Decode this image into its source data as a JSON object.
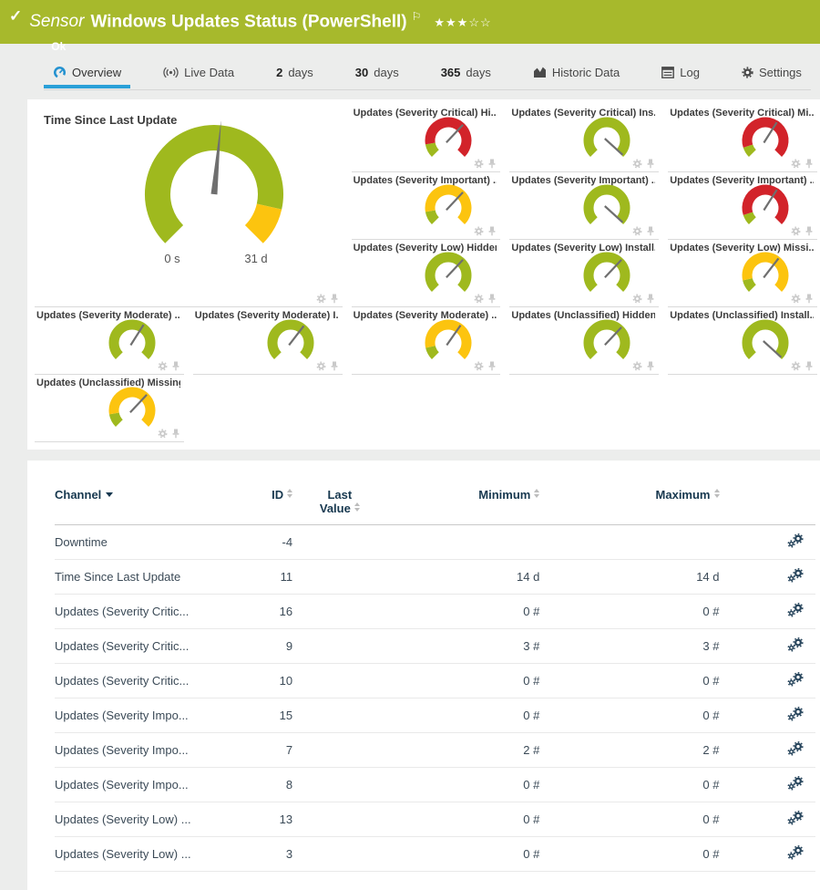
{
  "colors": {
    "header_bg": "#a7b92c",
    "accent_blue": "#2aa0d8",
    "green": "#9fb91e",
    "yellow": "#fcc40f",
    "red": "#d2232a",
    "needle": "#6f6f6f",
    "navy": "#17384f",
    "icon_gray": "#c9c9c9"
  },
  "header": {
    "kind": "Sensor",
    "title": "Windows Updates Status (PowerShell)",
    "status": "Ok",
    "rating_stars": "★★★☆☆",
    "rating_filled": 3,
    "rating_total": 5
  },
  "tabs": [
    {
      "label": "Overview"
    },
    {
      "label": "Live Data"
    },
    {
      "num": "2",
      "label": "days"
    },
    {
      "num": "30",
      "label": "days"
    },
    {
      "num": "365",
      "label": "days"
    },
    {
      "label": "Historic Data"
    },
    {
      "label": "Log"
    },
    {
      "label": "Settings"
    }
  ],
  "overview": {
    "main_gauge": {
      "title": "Time Since Last Update",
      "min_label": "0 s",
      "max_label": "31 d",
      "needle": 0.52,
      "segments": [
        {
          "color": "green",
          "from": 0,
          "to": 0.88
        },
        {
          "color": "yellow",
          "from": 0.88,
          "to": 1
        }
      ]
    },
    "gauges": [
      {
        "label": "Updates (Severity Critical) Hi...",
        "needle": 0.66,
        "segments": [
          {
            "color": "green",
            "from": 0,
            "to": 0.13
          },
          {
            "color": "red",
            "from": 0.13,
            "to": 1
          }
        ]
      },
      {
        "label": "Updates (Severity Critical) Ins...",
        "needle": 0.99,
        "segments": [
          {
            "color": "green",
            "from": 0,
            "to": 1
          }
        ]
      },
      {
        "label": "Updates (Severity Critical) Mi...",
        "needle": 0.62,
        "segments": [
          {
            "color": "green",
            "from": 0,
            "to": 0.1
          },
          {
            "color": "red",
            "from": 0.1,
            "to": 1
          }
        ]
      },
      {
        "label": "Updates (Severity Important) ...",
        "needle": 0.66,
        "segments": [
          {
            "color": "green",
            "from": 0,
            "to": 0.13
          },
          {
            "color": "yellow",
            "from": 0.13,
            "to": 1
          }
        ]
      },
      {
        "label": "Updates (Severity Important) ...",
        "needle": 0.99,
        "segments": [
          {
            "color": "green",
            "from": 0,
            "to": 1
          }
        ]
      },
      {
        "label": "Updates (Severity Important) ...",
        "needle": 0.62,
        "segments": [
          {
            "color": "green",
            "from": 0,
            "to": 0.1
          },
          {
            "color": "red",
            "from": 0.1,
            "to": 1
          }
        ]
      },
      {
        "label": "Updates (Severity Low) Hidden",
        "needle": 0.66,
        "segments": [
          {
            "color": "green",
            "from": 0,
            "to": 1
          }
        ]
      },
      {
        "label": "Updates (Severity Low) Install...",
        "needle": 0.66,
        "segments": [
          {
            "color": "green",
            "from": 0,
            "to": 1
          }
        ]
      },
      {
        "label": "Updates (Severity Low) Missi...",
        "needle": 0.64,
        "segments": [
          {
            "color": "green",
            "from": 0,
            "to": 0.12
          },
          {
            "color": "yellow",
            "from": 0.12,
            "to": 1
          }
        ]
      },
      {
        "label": "Updates (Severity Moderate) ...",
        "needle": 0.62,
        "segments": [
          {
            "color": "green",
            "from": 0,
            "to": 1
          }
        ]
      },
      {
        "label": "Updates (Severity Moderate) I...",
        "needle": 0.64,
        "segments": [
          {
            "color": "green",
            "from": 0,
            "to": 1
          }
        ]
      },
      {
        "label": "Updates (Severity Moderate) ...",
        "needle": 0.63,
        "segments": [
          {
            "color": "green",
            "from": 0,
            "to": 0.12
          },
          {
            "color": "yellow",
            "from": 0.12,
            "to": 1
          }
        ]
      },
      {
        "label": "Updates (Unclassified) Hidden",
        "needle": 0.66,
        "segments": [
          {
            "color": "green",
            "from": 0,
            "to": 1
          }
        ]
      },
      {
        "label": "Updates (Unclassified) Install...",
        "needle": 0.99,
        "segments": [
          {
            "color": "green",
            "from": 0,
            "to": 1
          }
        ]
      },
      {
        "label": "Updates (Unclassified) Missing",
        "needle": 0.66,
        "segments": [
          {
            "color": "green",
            "from": 0,
            "to": 0.13
          },
          {
            "color": "yellow",
            "from": 0.13,
            "to": 1
          }
        ]
      }
    ]
  },
  "table": {
    "columns": [
      {
        "label": "Channel",
        "sort": "active-desc"
      },
      {
        "label": "ID",
        "sort": "both"
      },
      {
        "line1": "Last",
        "line2": "Value",
        "sort": "both"
      },
      {
        "label": "Minimum",
        "sort": "both"
      },
      {
        "label": "Maximum",
        "sort": "both"
      }
    ],
    "rows": [
      {
        "channel": "Downtime",
        "id": "-4",
        "last": "",
        "min": "",
        "max": ""
      },
      {
        "channel": "Time Since Last Update",
        "id": "11",
        "last": "",
        "min": "14 d",
        "max": "14 d"
      },
      {
        "channel": "Updates (Severity Critic...",
        "id": "16",
        "last": "",
        "min": "0 #",
        "max": "0 #"
      },
      {
        "channel": "Updates (Severity Critic...",
        "id": "9",
        "last": "",
        "min": "3 #",
        "max": "3 #"
      },
      {
        "channel": "Updates (Severity Critic...",
        "id": "10",
        "last": "",
        "min": "0 #",
        "max": "0 #"
      },
      {
        "channel": "Updates (Severity Impo...",
        "id": "15",
        "last": "",
        "min": "0 #",
        "max": "0 #"
      },
      {
        "channel": "Updates (Severity Impo...",
        "id": "7",
        "last": "",
        "min": "2 #",
        "max": "2 #"
      },
      {
        "channel": "Updates (Severity Impo...",
        "id": "8",
        "last": "",
        "min": "0 #",
        "max": "0 #"
      },
      {
        "channel": "Updates (Severity Low) ...",
        "id": "13",
        "last": "",
        "min": "0 #",
        "max": "0 #"
      },
      {
        "channel": "Updates (Severity Low) ...",
        "id": "3",
        "last": "",
        "min": "0 #",
        "max": "0 #"
      }
    ]
  }
}
